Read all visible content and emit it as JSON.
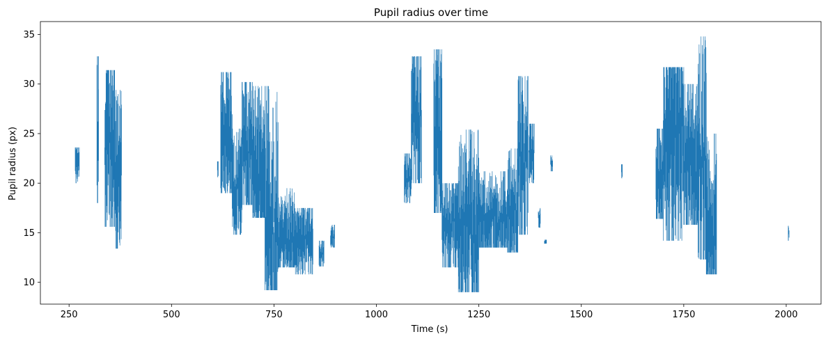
{
  "chart_data": {
    "type": "line",
    "title": "Pupil radius over time",
    "xlabel": "Time (s)",
    "ylabel": "Pupil radius (px)",
    "xlim": [
      180,
      2085
    ],
    "ylim": [
      7.8,
      36.3
    ],
    "xticks": [
      250,
      500,
      750,
      1000,
      1250,
      1500,
      1750,
      2000
    ],
    "yticks": [
      10,
      15,
      20,
      25,
      30,
      35
    ],
    "grid": false,
    "color": "#1f77b4",
    "series": [
      {
        "name": "",
        "segments": [
          {
            "x_start": 265,
            "x_end": 275,
            "min": 20.0,
            "max": 23.6,
            "mean": 22.0
          },
          {
            "x_start": 318,
            "x_end": 322,
            "min": 18.0,
            "max": 32.8,
            "mean": 26.0
          },
          {
            "x_start": 337,
            "x_end": 362,
            "min": 15.6,
            "max": 31.4,
            "mean": 24.0
          },
          {
            "x_start": 362,
            "x_end": 378,
            "min": 13.4,
            "max": 29.4,
            "mean": 20.0
          },
          {
            "x_start": 612,
            "x_end": 614,
            "min": 20.6,
            "max": 22.2,
            "mean": 21.5
          },
          {
            "x_start": 620,
            "x_end": 648,
            "min": 19.0,
            "max": 31.2,
            "mean": 24.5
          },
          {
            "x_start": 648,
            "x_end": 672,
            "min": 14.8,
            "max": 25.5,
            "mean": 19.5
          },
          {
            "x_start": 672,
            "x_end": 698,
            "min": 17.8,
            "max": 30.2,
            "mean": 24.0
          },
          {
            "x_start": 698,
            "x_end": 728,
            "min": 16.5,
            "max": 29.8,
            "mean": 21.0
          },
          {
            "x_start": 728,
            "x_end": 760,
            "min": 9.2,
            "max": 29.8,
            "mean": 16.0
          },
          {
            "x_start": 760,
            "x_end": 800,
            "min": 11.5,
            "max": 19.5,
            "mean": 14.2
          },
          {
            "x_start": 800,
            "x_end": 845,
            "min": 10.8,
            "max": 17.5,
            "mean": 14.3
          },
          {
            "x_start": 860,
            "x_end": 872,
            "min": 11.6,
            "max": 14.2,
            "mean": 13.0
          },
          {
            "x_start": 888,
            "x_end": 898,
            "min": 13.5,
            "max": 15.8,
            "mean": 14.6
          },
          {
            "x_start": 1068,
            "x_end": 1085,
            "min": 18.0,
            "max": 23.0,
            "mean": 20.5
          },
          {
            "x_start": 1085,
            "x_end": 1110,
            "min": 20.0,
            "max": 32.8,
            "mean": 27.0
          },
          {
            "x_start": 1140,
            "x_end": 1160,
            "min": 17.0,
            "max": 33.5,
            "mean": 24.0
          },
          {
            "x_start": 1160,
            "x_end": 1200,
            "min": 11.5,
            "max": 20.0,
            "mean": 16.0
          },
          {
            "x_start": 1200,
            "x_end": 1250,
            "min": 9.0,
            "max": 25.4,
            "mean": 15.5
          },
          {
            "x_start": 1250,
            "x_end": 1320,
            "min": 13.5,
            "max": 21.2,
            "mean": 16.2
          },
          {
            "x_start": 1320,
            "x_end": 1345,
            "min": 13.0,
            "max": 23.5,
            "mean": 17.0
          },
          {
            "x_start": 1345,
            "x_end": 1370,
            "min": 14.8,
            "max": 30.8,
            "mean": 22.0
          },
          {
            "x_start": 1372,
            "x_end": 1385,
            "min": 20.0,
            "max": 26.0,
            "mean": 23.0
          },
          {
            "x_start": 1395,
            "x_end": 1400,
            "min": 15.5,
            "max": 17.5,
            "mean": 16.5
          },
          {
            "x_start": 1410,
            "x_end": 1415,
            "min": 13.9,
            "max": 14.3,
            "mean": 14.1
          },
          {
            "x_start": 1425,
            "x_end": 1430,
            "min": 21.2,
            "max": 22.8,
            "mean": 22.0
          },
          {
            "x_start": 1598,
            "x_end": 1600,
            "min": 20.5,
            "max": 21.9,
            "mean": 21.2
          },
          {
            "x_start": 1682,
            "x_end": 1700,
            "min": 16.4,
            "max": 25.5,
            "mean": 20.0
          },
          {
            "x_start": 1700,
            "x_end": 1750,
            "min": 14.2,
            "max": 31.7,
            "mean": 25.0
          },
          {
            "x_start": 1750,
            "x_end": 1785,
            "min": 15.8,
            "max": 30.0,
            "mean": 21.0
          },
          {
            "x_start": 1785,
            "x_end": 1805,
            "min": 12.3,
            "max": 34.8,
            "mean": 22.0
          },
          {
            "x_start": 1805,
            "x_end": 1830,
            "min": 10.8,
            "max": 25.0,
            "mean": 15.0
          },
          {
            "x_start": 2005,
            "x_end": 2007,
            "min": 14.2,
            "max": 15.7,
            "mean": 15.0
          }
        ]
      }
    ]
  }
}
